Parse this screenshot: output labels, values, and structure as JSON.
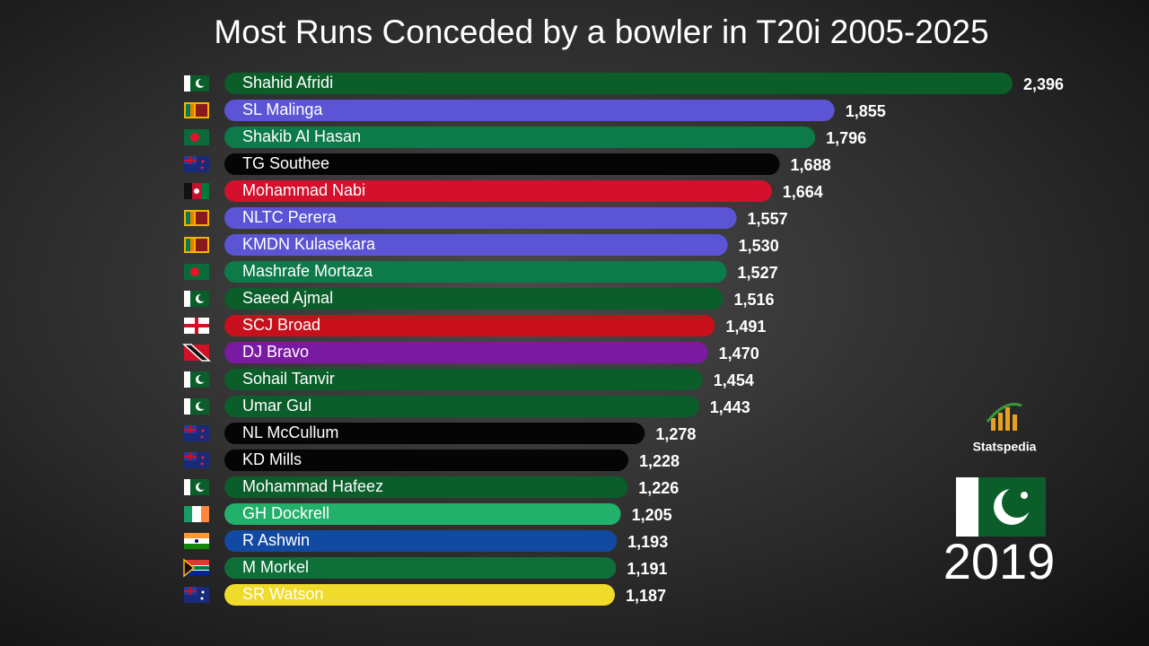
{
  "chart_data": {
    "type": "bar",
    "orientation": "horizontal",
    "title": "Most Runs Conceded by a bowler in T20i 2005-2025",
    "categories": [
      "Shahid Afridi",
      "SL Malinga",
      "Shakib Al Hasan",
      "TG Southee",
      "Mohammad Nabi",
      "NLTC Perera",
      "KMDN Kulasekara",
      "Mashrafe Mortaza",
      "Saeed Ajmal",
      "SCJ Broad",
      "DJ Bravo",
      "Sohail Tanvir",
      "Umar Gul",
      "NL McCullum",
      "KD Mills",
      "Mohammad Hafeez",
      "GH Dockrell",
      "R Ashwin",
      "M Morkel",
      "SR Watson"
    ],
    "values": [
      2396,
      1855,
      1796,
      1688,
      1664,
      1557,
      1530,
      1527,
      1516,
      1491,
      1470,
      1454,
      1443,
      1278,
      1228,
      1226,
      1205,
      1193,
      1191,
      1187
    ],
    "value_labels": [
      "2,396",
      "1,855",
      "1,796",
      "1,688",
      "1,664",
      "1,557",
      "1,530",
      "1,527",
      "1,516",
      "1,491",
      "1,470",
      "1,454",
      "1,443",
      "1,278",
      "1,228",
      "1,226",
      "1,205",
      "1,193",
      "1,191",
      "1,187"
    ],
    "colors": [
      "#0b5e2a",
      "#5b55d6",
      "#0d7a4a",
      "#050505",
      "#d4102d",
      "#5b55d6",
      "#5b55d6",
      "#0d7a4a",
      "#0b5e2a",
      "#c8101c",
      "#7a1aa0",
      "#0b5e2a",
      "#0b5e2a",
      "#050505",
      "#050505",
      "#0b5e2a",
      "#22b06a",
      "#124aa3",
      "#0e7038",
      "#f0db2a"
    ],
    "year": "2019",
    "brand": "Statspedia"
  }
}
